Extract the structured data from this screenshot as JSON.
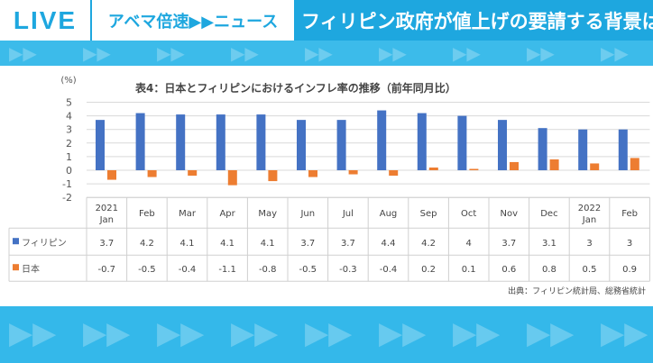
{
  "header": {
    "live": "LIVE",
    "program": "アベマ倍速▶▶ニュース",
    "headline": "フィリピン政府が値上げの要請する背景は"
  },
  "icons": {
    "band": "double-arrow-icon"
  },
  "chart_data": {
    "type": "bar",
    "title": "表4：日本とフィリピンにおけるインフレ率の推移（前年同月比）",
    "ylabel": "(%)",
    "ylim": [
      -2,
      5
    ],
    "yticks": [
      "5",
      "4",
      "3",
      "2",
      "1",
      "0",
      "-1",
      "-2"
    ],
    "grid": true,
    "categories": [
      [
        "2021",
        "Jan"
      ],
      [
        "Feb"
      ],
      [
        "Mar"
      ],
      [
        "Apr"
      ],
      [
        "May"
      ],
      [
        "Jun"
      ],
      [
        "Jul"
      ],
      [
        "Aug"
      ],
      [
        "Sep"
      ],
      [
        "Oct"
      ],
      [
        "Nov"
      ],
      [
        "Dec"
      ],
      [
        "2022",
        "Jan"
      ],
      [
        "Feb"
      ]
    ],
    "series": [
      {
        "name": "フィリピン",
        "color": "#4472c4",
        "values": [
          3.7,
          4.2,
          4.1,
          4.1,
          4.1,
          3.7,
          3.7,
          4.4,
          4.2,
          4,
          3.7,
          3.1,
          3,
          3
        ],
        "labels": [
          "3.7",
          "4.2",
          "4.1",
          "4.1",
          "4.1",
          "3.7",
          "3.7",
          "4.4",
          "4.2",
          "4",
          "3.7",
          "3.1",
          "3",
          "3"
        ]
      },
      {
        "name": "日本",
        "color": "#ed7d31",
        "values": [
          -0.7,
          -0.5,
          -0.4,
          -1.1,
          -0.8,
          -0.5,
          -0.3,
          -0.4,
          0.2,
          0.1,
          0.6,
          0.8,
          0.5,
          0.9
        ],
        "labels": [
          "-0.7",
          "-0.5",
          "-0.4",
          "-1.1",
          "-0.8",
          "-0.5",
          "-0.3",
          "-0.4",
          "0.2",
          "0.1",
          "0.6",
          "0.8",
          "0.5",
          "0.9"
        ]
      }
    ],
    "source": "出典：フィリピン統計局、総務省統計"
  }
}
